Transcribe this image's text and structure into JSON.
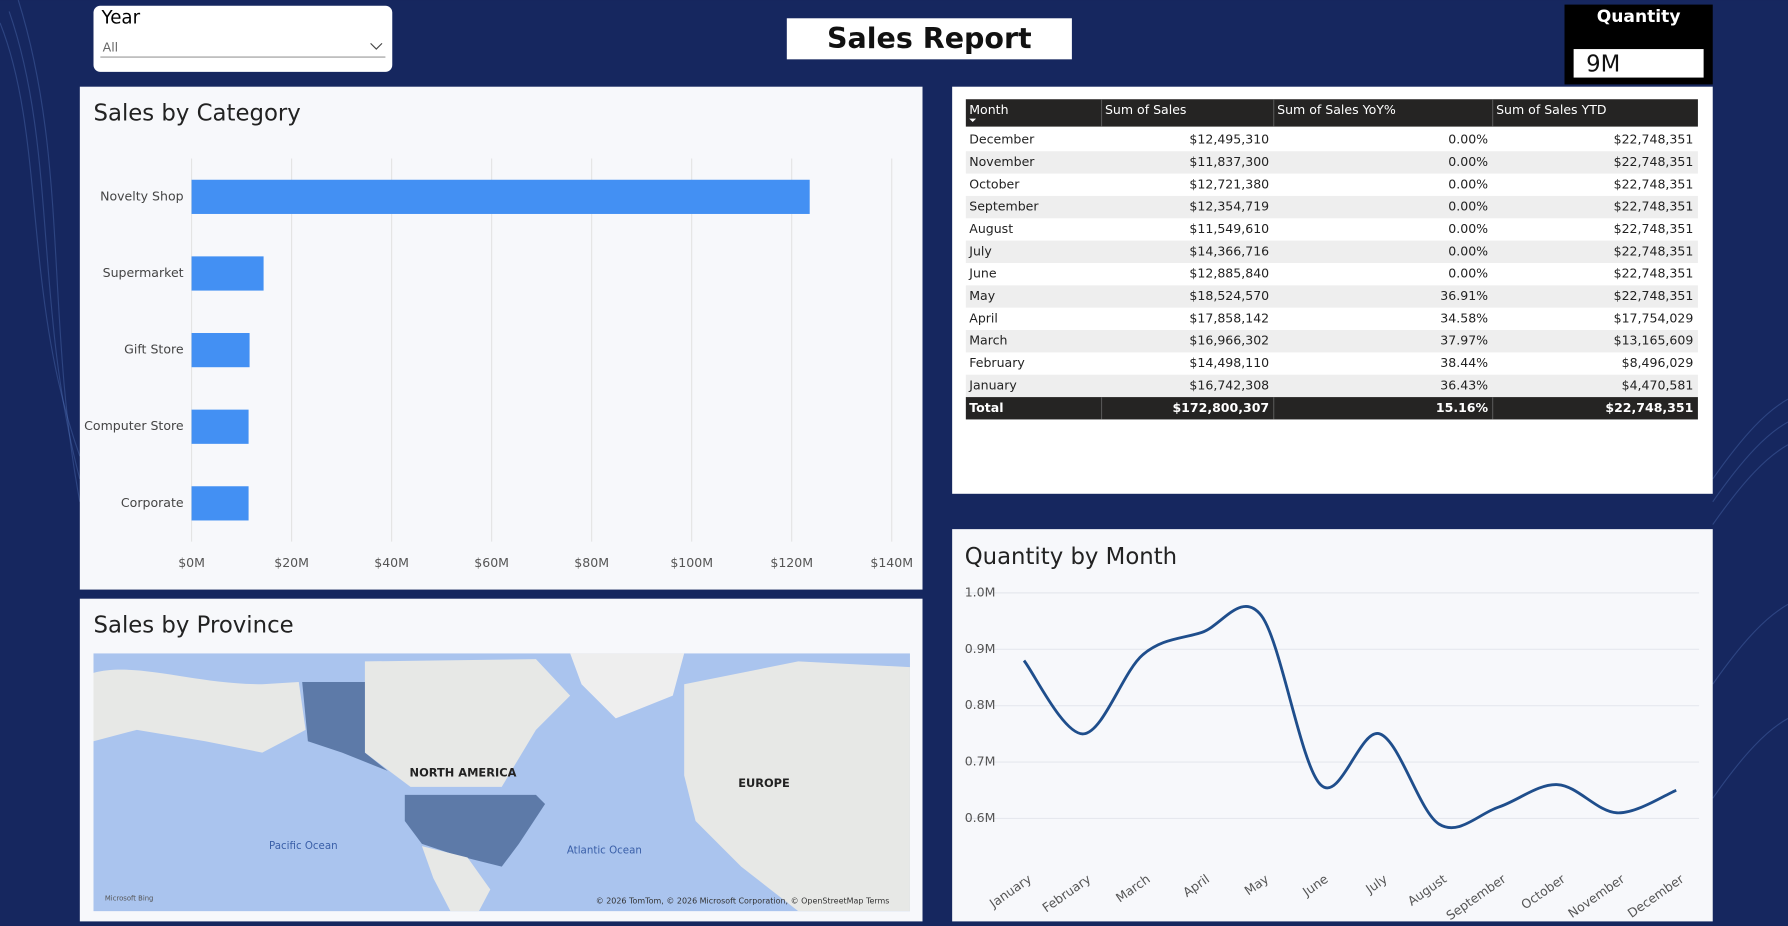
{
  "slicer": {
    "title": "Year",
    "value": "All"
  },
  "header": {
    "title": "Sales Report"
  },
  "card": {
    "title": "Quantity",
    "value": "9M"
  },
  "bar_chart": {
    "chart_data": {
      "type": "barh",
      "title": "Sales by Category",
      "categories": [
        "Novelty Shop",
        "Supermarket",
        "Gift Store",
        "Computer Store",
        "Corporate"
      ],
      "values": [
        123600000,
        14400000,
        11600000,
        11400000,
        11400000
      ],
      "color": "#4390f3",
      "xlim": [
        0,
        140000000
      ],
      "xticks": [
        {
          "value": 0,
          "label": "$0M"
        },
        {
          "value": 20000000,
          "label": "$20M"
        },
        {
          "value": 40000000,
          "label": "$40M"
        },
        {
          "value": 60000000,
          "label": "$60M"
        },
        {
          "value": 80000000,
          "label": "$80M"
        },
        {
          "value": 100000000,
          "label": "$100M"
        },
        {
          "value": 120000000,
          "label": "$120M"
        },
        {
          "value": 140000000,
          "label": "$140M"
        }
      ],
      "grid": true
    }
  },
  "table": {
    "columns": [
      "Month",
      "Sum of Sales",
      "Sum of Sales YoY%",
      "Sum of Sales YTD"
    ],
    "rows": [
      [
        "December",
        "$12,495,310",
        "0.00%",
        "$22,748,351"
      ],
      [
        "November",
        "$11,837,300",
        "0.00%",
        "$22,748,351"
      ],
      [
        "October",
        "$12,721,380",
        "0.00%",
        "$22,748,351"
      ],
      [
        "September",
        "$12,354,719",
        "0.00%",
        "$22,748,351"
      ],
      [
        "August",
        "$11,549,610",
        "0.00%",
        "$22,748,351"
      ],
      [
        "July",
        "$14,366,716",
        "0.00%",
        "$22,748,351"
      ],
      [
        "June",
        "$12,885,840",
        "0.00%",
        "$22,748,351"
      ],
      [
        "May",
        "$18,524,570",
        "36.91%",
        "$22,748,351"
      ],
      [
        "April",
        "$17,858,142",
        "34.58%",
        "$17,754,029"
      ],
      [
        "March",
        "$16,966,302",
        "37.97%",
        "$13,165,609"
      ],
      [
        "February",
        "$14,498,110",
        "38.44%",
        "$8,496,029"
      ],
      [
        "January",
        "$16,742,308",
        "36.43%",
        "$4,470,581"
      ]
    ],
    "total": [
      "Total",
      "$172,800,307",
      "15.16%",
      "$22,748,351"
    ]
  },
  "map": {
    "title": "Sales by Province",
    "labels": [
      "NORTH AMERICA",
      "EUROPE",
      "Pacific Ocean",
      "Atlantic Ocean"
    ],
    "attribution": "© 2026 TomTom, © 2026 Microsoft Corporation, © OpenStreetMap  Terms",
    "logo": "Microsoft Bing"
  },
  "line_chart": {
    "chart_data": {
      "type": "line",
      "title": "Quantity by Month",
      "categories": [
        "January",
        "February",
        "March",
        "April",
        "May",
        "June",
        "July",
        "August",
        "September",
        "October",
        "November",
        "December"
      ],
      "values": [
        880000,
        750000,
        890000,
        930000,
        960000,
        660000,
        750000,
        590000,
        620000,
        660000,
        610000,
        650000
      ],
      "color": "#1f4e8c",
      "ylim": [
        555000,
        1020000
      ],
      "yticks": [
        {
          "value": 600000,
          "label": "0.6M"
        },
        {
          "value": 700000,
          "label": "0.7M"
        },
        {
          "value": 800000,
          "label": "0.8M"
        },
        {
          "value": 900000,
          "label": "0.9M"
        },
        {
          "value": 1000000,
          "label": "1.0M"
        }
      ],
      "grid": true
    }
  }
}
